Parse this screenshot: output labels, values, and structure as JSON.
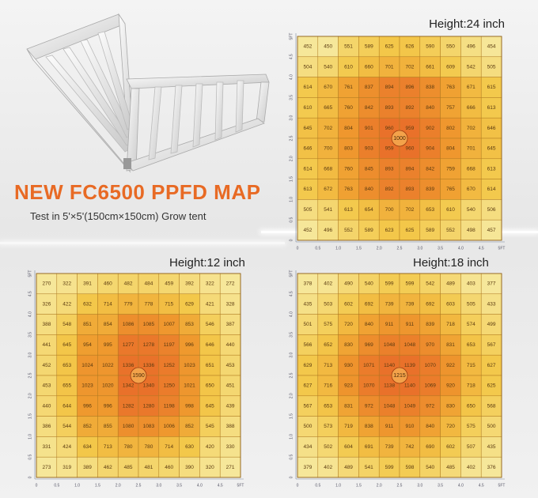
{
  "product": {
    "headline": "NEW FC6500 PPFD MAP",
    "subheadline": "Test in 5'×5'(150cm×150cm) Grow tent"
  },
  "colors": {
    "low": "#f6e79a",
    "mid": "#f3c84a",
    "high": "#ef9a2e",
    "peak": "#e9712a",
    "headline": "#e86a24"
  },
  "chart_data": [
    {
      "type": "heatmap",
      "title": "Height:24 inch",
      "xlabel": "",
      "ylabel": "",
      "x_ticks": [
        "0",
        "0.5",
        "1.0",
        "1.5",
        "2.0",
        "2.5",
        "3.0",
        "3.5",
        "4.0",
        "4.5",
        "5FT"
      ],
      "y_ticks": [
        "0",
        "0.5",
        "1.0",
        "1.5",
        "2.0",
        "2.5",
        "3.0",
        "3.5",
        "4.0",
        "4.5",
        "5FT"
      ],
      "center_value": 1000,
      "grid": [
        [
          452,
          450,
          551,
          589,
          625,
          626,
          590,
          550,
          496,
          454
        ],
        [
          504,
          540,
          610,
          660,
          701,
          702,
          661,
          609,
          542,
          505
        ],
        [
          614,
          670,
          761,
          837,
          894,
          896,
          838,
          763,
          671,
          615
        ],
        [
          610,
          665,
          760,
          842,
          893,
          892,
          840,
          757,
          666,
          613
        ],
        [
          645,
          702,
          804,
          901,
          960,
          959,
          902,
          802,
          702,
          646
        ],
        [
          646,
          700,
          803,
          903,
          959,
          960,
          904,
          804,
          701,
          645
        ],
        [
          614,
          668,
          760,
          845,
          893,
          894,
          842,
          759,
          668,
          613
        ],
        [
          613,
          672,
          763,
          840,
          892,
          893,
          839,
          765,
          670,
          614
        ],
        [
          505,
          541,
          613,
          654,
          700,
          702,
          653,
          610,
          540,
          506
        ],
        [
          452,
          496,
          552,
          589,
          623,
          625,
          589,
          552,
          498,
          457
        ]
      ]
    },
    {
      "type": "heatmap",
      "title": "Height:12 inch",
      "xlabel": "",
      "ylabel": "",
      "x_ticks": [
        "0",
        "0.5",
        "1.0",
        "1.5",
        "2.0",
        "2.5",
        "3.0",
        "3.5",
        "4.0",
        "4.5",
        "5FT"
      ],
      "y_ticks": [
        "0",
        "0.5",
        "1.0",
        "1.5",
        "2.0",
        "2.5",
        "3.0",
        "3.5",
        "4.0",
        "4.5",
        "5FT"
      ],
      "center_value": 1590,
      "grid": [
        [
          270,
          322,
          391,
          460,
          482,
          484,
          459,
          392,
          322,
          272
        ],
        [
          326,
          422,
          632,
          714,
          779,
          778,
          715,
          629,
          421,
          328
        ],
        [
          388,
          548,
          851,
          854,
          1086,
          1085,
          1007,
          853,
          546,
          387
        ],
        [
          441,
          645,
          954,
          995,
          1277,
          1278,
          1197,
          996,
          646,
          440
        ],
        [
          452,
          653,
          1024,
          1022,
          1336,
          1336,
          1252,
          1023,
          651,
          453
        ],
        [
          453,
          655,
          1023,
          1020,
          1342,
          1340,
          1250,
          1021,
          650,
          451
        ],
        [
          440,
          644,
          996,
          996,
          1282,
          1280,
          1198,
          998,
          645,
          439
        ],
        [
          386,
          544,
          852,
          855,
          1080,
          1083,
          1006,
          852,
          545,
          388
        ],
        [
          331,
          424,
          634,
          713,
          780,
          780,
          714,
          630,
          420,
          330
        ],
        [
          273,
          319,
          389,
          462,
          485,
          481,
          460,
          390,
          320,
          271
        ]
      ]
    },
    {
      "type": "heatmap",
      "title": "Height:18 inch",
      "xlabel": "",
      "ylabel": "",
      "x_ticks": [
        "0",
        "0.5",
        "1.0",
        "1.5",
        "2.0",
        "2.5",
        "3.0",
        "3.5",
        "4.0",
        "4.5",
        "5FT"
      ],
      "y_ticks": [
        "0",
        "0.5",
        "1.0",
        "1.5",
        "2.0",
        "2.5",
        "3.0",
        "3.5",
        "4.0",
        "4.5",
        "5FT"
      ],
      "center_value": 1215,
      "grid": [
        [
          378,
          402,
          490,
          540,
          599,
          599,
          542,
          489,
          403,
          377
        ],
        [
          435,
          503,
          602,
          692,
          739,
          739,
          692,
          603,
          505,
          433
        ],
        [
          501,
          575,
          720,
          840,
          911,
          911,
          839,
          718,
          574,
          499
        ],
        [
          566,
          652,
          830,
          969,
          1048,
          1048,
          970,
          831,
          653,
          567
        ],
        [
          629,
          713,
          930,
          1071,
          1140,
          1139,
          1070,
          922,
          715,
          627
        ],
        [
          627,
          716,
          923,
          1070,
          1138,
          1140,
          1069,
          920,
          718,
          625
        ],
        [
          567,
          653,
          831,
          972,
          1048,
          1049,
          972,
          830,
          650,
          568
        ],
        [
          500,
          573,
          719,
          838,
          911,
          910,
          840,
          720,
          575,
          500
        ],
        [
          434,
          502,
          604,
          691,
          739,
          742,
          690,
          602,
          507,
          435
        ],
        [
          379,
          402,
          489,
          541,
          599,
          598,
          540,
          485,
          402,
          376
        ]
      ]
    }
  ]
}
